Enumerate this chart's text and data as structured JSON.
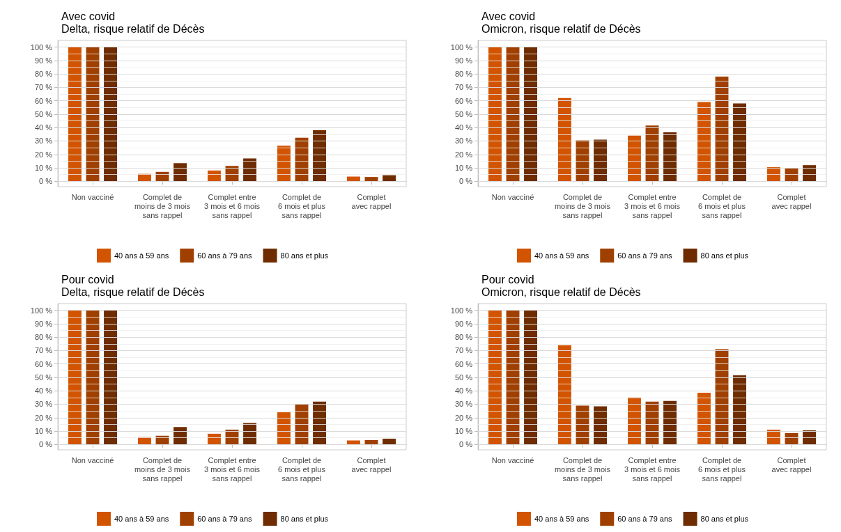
{
  "chart_data": [
    {
      "type": "bar",
      "title": "Avec covid",
      "subtitle": "Delta, risque relatif de Décès",
      "categories": [
        "Non vacciné",
        "Complet de\nmoins de 3 mois\nsans rappel",
        "Complet entre\n3 mois et 6 mois\nsans rappel",
        "Complet de\n6 mois et plus\nsans rappel",
        "Complet\navec rappel"
      ],
      "series": [
        {
          "name": "40 ans à 59 ans",
          "color": "#d35400",
          "values": [
            100,
            5.5,
            8,
            26.5,
            3.5
          ]
        },
        {
          "name": "60 ans à 79 ans",
          "color": "#a04000",
          "values": [
            100,
            7,
            11.5,
            32.5,
            3.2
          ]
        },
        {
          "name": "80 ans et plus",
          "color": "#6e2c00",
          "values": [
            100,
            13.5,
            17,
            38,
            4.5
          ]
        }
      ],
      "ylim": [
        -4,
        105
      ],
      "yticks": [
        {
          "value": 0,
          "label": "0 %"
        },
        {
          "value": 10,
          "label": "10 %"
        },
        {
          "value": 20,
          "label": "20 %"
        },
        {
          "value": 30,
          "label": "30 %"
        },
        {
          "value": 40,
          "label": "40 %"
        },
        {
          "value": 50,
          "label": "50 %"
        },
        {
          "value": 60,
          "label": "60 %"
        },
        {
          "value": 70,
          "label": "70 %"
        },
        {
          "value": 80,
          "label": "80 %"
        },
        {
          "value": 90,
          "label": "90 %"
        },
        {
          "value": 100,
          "label": "100 %"
        }
      ],
      "grid": "y",
      "legend": "bottom"
    },
    {
      "type": "bar",
      "title": "Avec covid",
      "subtitle": "Omicron, risque relatif de Décès",
      "categories": [
        "Non vacciné",
        "Complet de\nmoins de 3 mois\nsans rappel",
        "Complet entre\n3 mois et 6 mois\nsans rappel",
        "Complet de\n6 mois et plus\nsans rappel",
        "Complet\navec rappel"
      ],
      "series": [
        {
          "name": "40 ans à 59 ans",
          "color": "#d35400",
          "values": [
            100,
            62,
            34,
            59,
            10.5
          ]
        },
        {
          "name": "60 ans à 79 ans",
          "color": "#a04000",
          "values": [
            100,
            30.5,
            41.5,
            78,
            9.5
          ]
        },
        {
          "name": "80 ans et plus",
          "color": "#6e2c00",
          "values": [
            100,
            31,
            36.5,
            58,
            12
          ]
        }
      ],
      "ylim": [
        -4,
        105
      ],
      "yticks": [
        {
          "value": 0,
          "label": "0 %"
        },
        {
          "value": 10,
          "label": "10 %"
        },
        {
          "value": 20,
          "label": "20 %"
        },
        {
          "value": 30,
          "label": "30 %"
        },
        {
          "value": 40,
          "label": "40 %"
        },
        {
          "value": 50,
          "label": "50 %"
        },
        {
          "value": 60,
          "label": "60 %"
        },
        {
          "value": 70,
          "label": "70 %"
        },
        {
          "value": 80,
          "label": "80 %"
        },
        {
          "value": 90,
          "label": "90 %"
        },
        {
          "value": 100,
          "label": "100 %"
        }
      ],
      "grid": "y",
      "legend": "bottom"
    },
    {
      "type": "bar",
      "title": "Pour covid",
      "subtitle": "Delta, risque relatif de Décès",
      "categories": [
        "Non vacciné",
        "Complet de\nmoins de 3 mois\nsans rappel",
        "Complet entre\n3 mois et 6 mois\nsans rappel",
        "Complet de\n6 mois et plus\nsans rappel",
        "Complet\navec rappel"
      ],
      "series": [
        {
          "name": "40 ans à 59 ans",
          "color": "#d35400",
          "values": [
            100,
            5.5,
            8,
            24,
            3
          ]
        },
        {
          "name": "60 ans à 79 ans",
          "color": "#a04000",
          "values": [
            100,
            6.5,
            11,
            30,
            3.3
          ]
        },
        {
          "name": "80 ans et plus",
          "color": "#6e2c00",
          "values": [
            100,
            13,
            16,
            32,
            4.3
          ]
        }
      ],
      "ylim": [
        -4,
        105
      ],
      "yticks": [
        {
          "value": 0,
          "label": "0 %"
        },
        {
          "value": 10,
          "label": "10 %"
        },
        {
          "value": 20,
          "label": "20 %"
        },
        {
          "value": 30,
          "label": "30 %"
        },
        {
          "value": 40,
          "label": "40 %"
        },
        {
          "value": 50,
          "label": "50 %"
        },
        {
          "value": 60,
          "label": "60 %"
        },
        {
          "value": 70,
          "label": "70 %"
        },
        {
          "value": 80,
          "label": "80 %"
        },
        {
          "value": 90,
          "label": "90 %"
        },
        {
          "value": 100,
          "label": "100 %"
        }
      ],
      "grid": "y",
      "legend": "bottom"
    },
    {
      "type": "bar",
      "title": "Pour covid",
      "subtitle": "Omicron, risque relatif de Décès",
      "categories": [
        "Non vacciné",
        "Complet de\nmoins de 3 mois\nsans rappel",
        "Complet entre\n3 mois et 6 mois\nsans rappel",
        "Complet de\n6 mois et plus\nsans rappel",
        "Complet\navec rappel"
      ],
      "series": [
        {
          "name": "40 ans à 59 ans",
          "color": "#d35400",
          "values": [
            100,
            74,
            35,
            38.5,
            11
          ]
        },
        {
          "name": "60 ans à 79 ans",
          "color": "#a04000",
          "values": [
            100,
            29,
            32,
            71,
            8.5
          ]
        },
        {
          "name": "80 ans et plus",
          "color": "#6e2c00",
          "values": [
            100,
            28.5,
            32.5,
            51.5,
            10.5
          ]
        }
      ],
      "ylim": [
        -4,
        105
      ],
      "yticks": [
        {
          "value": 0,
          "label": "0 %"
        },
        {
          "value": 10,
          "label": "10 %"
        },
        {
          "value": 20,
          "label": "20 %"
        },
        {
          "value": 30,
          "label": "30 %"
        },
        {
          "value": 40,
          "label": "40 %"
        },
        {
          "value": 50,
          "label": "50 %"
        },
        {
          "value": 60,
          "label": "60 %"
        },
        {
          "value": 70,
          "label": "70 %"
        },
        {
          "value": 80,
          "label": "80 %"
        },
        {
          "value": 90,
          "label": "90 %"
        },
        {
          "value": 100,
          "label": "100 %"
        }
      ],
      "grid": "y",
      "legend": "bottom"
    }
  ]
}
